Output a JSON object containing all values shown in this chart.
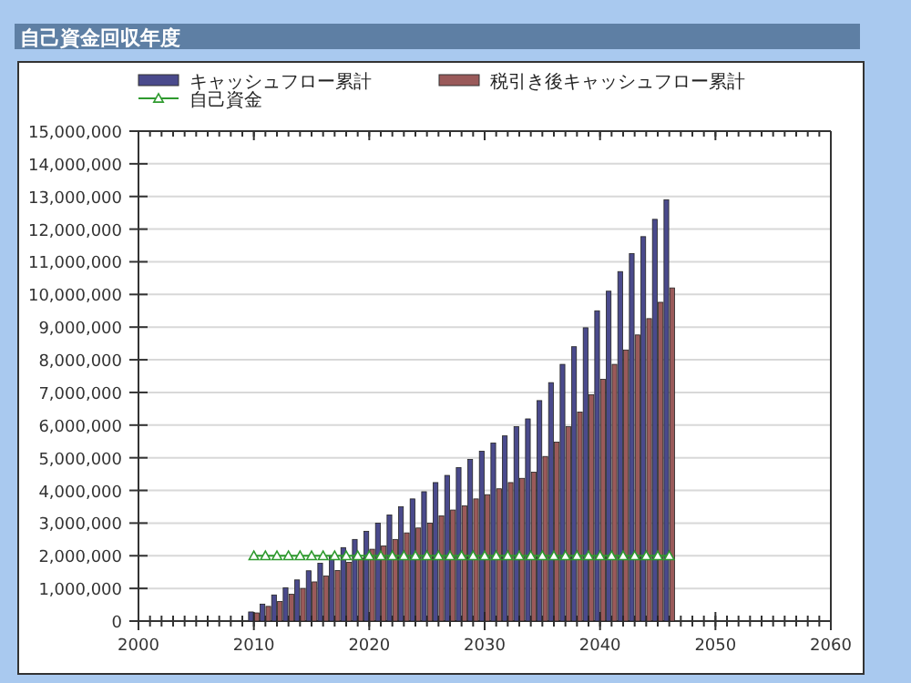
{
  "chart_data": {
    "type": "bar",
    "title": "自己資金回収年度",
    "x": [
      2010,
      2011,
      2012,
      2013,
      2014,
      2015,
      2016,
      2017,
      2018,
      2019,
      2020,
      2021,
      2022,
      2023,
      2024,
      2025,
      2026,
      2027,
      2028,
      2029,
      2030,
      2031,
      2032,
      2033,
      2034,
      2035,
      2036,
      2037,
      2038,
      2039,
      2040,
      2041,
      2042,
      2043,
      2044,
      2045,
      2046
    ],
    "series": [
      {
        "name": "キャッシュフロー累計",
        "type": "bar",
        "color": "#4a4a8c",
        "values": [
          280000,
          520000,
          800000,
          1020000,
          1260000,
          1540000,
          1770000,
          2000000,
          2250000,
          2500000,
          2750000,
          3000000,
          3250000,
          3500000,
          3740000,
          3960000,
          4240000,
          4460000,
          4700000,
          4950000,
          5200000,
          5450000,
          5670000,
          5950000,
          6190000,
          6750000,
          7300000,
          7860000,
          8400000,
          8980000,
          9500000,
          10100000,
          10700000,
          11250000,
          11770000,
          12300000,
          12900000
        ]
      },
      {
        "name": "税引き後キャッシュフロー累計",
        "type": "bar",
        "color": "#9a5a5a",
        "values": [
          250000,
          450000,
          600000,
          820000,
          1000000,
          1200000,
          1380000,
          1550000,
          1800000,
          1930000,
          2200000,
          2300000,
          2500000,
          2700000,
          2850000,
          3000000,
          3220000,
          3400000,
          3530000,
          3740000,
          3870000,
          4050000,
          4240000,
          4370000,
          4560000,
          5040000,
          5480000,
          5950000,
          6400000,
          6930000,
          7400000,
          7860000,
          8300000,
          8760000,
          9260000,
          9760000,
          10200000
        ]
      },
      {
        "name": "自己資金",
        "type": "line",
        "color": "#2e9a2e",
        "marker": "triangle",
        "values": [
          2000000,
          2000000,
          2000000,
          2000000,
          2000000,
          2000000,
          2000000,
          2000000,
          2000000,
          2000000,
          2000000,
          2000000,
          2000000,
          2000000,
          2000000,
          2000000,
          2000000,
          2000000,
          2000000,
          2000000,
          2000000,
          2000000,
          2000000,
          2000000,
          2000000,
          2000000,
          2000000,
          2000000,
          2000000,
          2000000,
          2000000,
          2000000,
          2000000,
          2000000,
          2000000,
          2000000,
          2000000
        ]
      }
    ],
    "xlim": [
      2000,
      2060
    ],
    "xticks": [
      2000,
      2010,
      2020,
      2030,
      2040,
      2050,
      2060
    ],
    "ylim": [
      0,
      15000000
    ],
    "yticks": [
      0,
      {
        "value": 1000000,
        "label": "1,000,000"
      },
      {
        "value": 2000000,
        "label": "2,000,000"
      },
      {
        "value": 3000000,
        "label": "3,000,000"
      },
      {
        "value": 4000000,
        "label": "4,000,000"
      },
      {
        "value": 5000000,
        "label": "5,000,000"
      },
      {
        "value": 6000000,
        "label": "6,000,000"
      },
      {
        "value": 7000000,
        "label": "7,000,000"
      },
      {
        "value": 8000000,
        "label": "8,000,000"
      },
      {
        "value": 9000000,
        "label": "9,000,000"
      },
      {
        "value": 10000000,
        "label": "10,000,000"
      },
      {
        "value": 11000000,
        "label": "11,000,000"
      },
      {
        "value": 12000000,
        "label": "12,000,000"
      },
      {
        "value": 13000000,
        "label": "13,000,000"
      },
      {
        "value": 14000000,
        "label": "14,000,000"
      },
      {
        "value": 15000000,
        "label": "15,000,000"
      }
    ],
    "grid": "y",
    "legend": "top"
  }
}
